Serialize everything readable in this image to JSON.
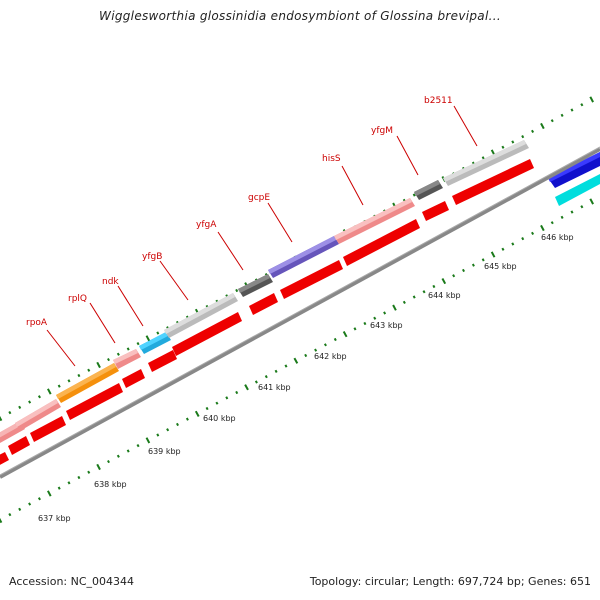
{
  "title": "Wigglesworthia glossinidia endosymbiont of Glossina brevipal...",
  "footer": {
    "accession": "Accession: NC_004344",
    "summary": "Topology: circular; Length: 697,724 bp; Genes: 651"
  },
  "colors": {
    "gene_label": "#cc0000",
    "leader_line": "#cc0000",
    "backbone": "#888888",
    "tick": "#1a7a1a",
    "strand2_gene": "#ff0000"
  },
  "scale_labels": [
    "637 kbp",
    "638 kbp",
    "639 kbp",
    "640 kbp",
    "641 kbp",
    "642 kbp",
    "643 kbp",
    "644 kbp",
    "645 kbp",
    "646 kbp"
  ],
  "gene_labels": [
    "rpoA",
    "rplQ",
    "ndk",
    "yfgB",
    "yfgA",
    "gcpE",
    "hisS",
    "yfgM",
    "b2511"
  ]
}
